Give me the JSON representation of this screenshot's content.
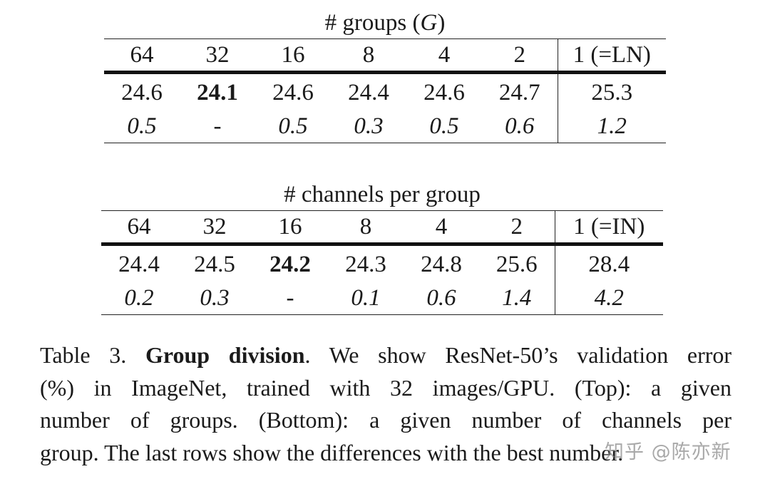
{
  "top_table": {
    "title_prefix": "# groups (",
    "title_var": "G",
    "title_suffix": ")",
    "headers": [
      "64",
      "32",
      "16",
      "8",
      "4",
      "2",
      "1 (=LN)"
    ],
    "errors": [
      "24.6",
      "24.1",
      "24.6",
      "24.4",
      "24.6",
      "24.7",
      "25.3"
    ],
    "diffs": [
      "0.5",
      "-",
      "0.5",
      "0.3",
      "0.5",
      "0.6",
      "1.2"
    ],
    "best_index": 1
  },
  "bottom_table": {
    "title": "# channels per group",
    "headers": [
      "64",
      "32",
      "16",
      "8",
      "4",
      "2",
      "1 (=IN)"
    ],
    "errors": [
      "24.4",
      "24.5",
      "24.2",
      "24.3",
      "24.8",
      "25.6",
      "28.4"
    ],
    "diffs": [
      "0.2",
      "0.3",
      "-",
      "0.1",
      "0.6",
      "1.4",
      "4.2"
    ],
    "best_index": 2
  },
  "caption": {
    "label": "Table 3.",
    "bold_title": "Group division",
    "line1_rest": ".  We show ResNet-50’s validation error",
    "line2": "(%) in ImageNet, trained with 32 images/GPU. (Top):  a given",
    "line3": "number of groups.  (Bottom):  a given number of channels per",
    "line4": "group. The last rows show the differences with the best number."
  },
  "watermark": "知乎 @陈亦新"
}
